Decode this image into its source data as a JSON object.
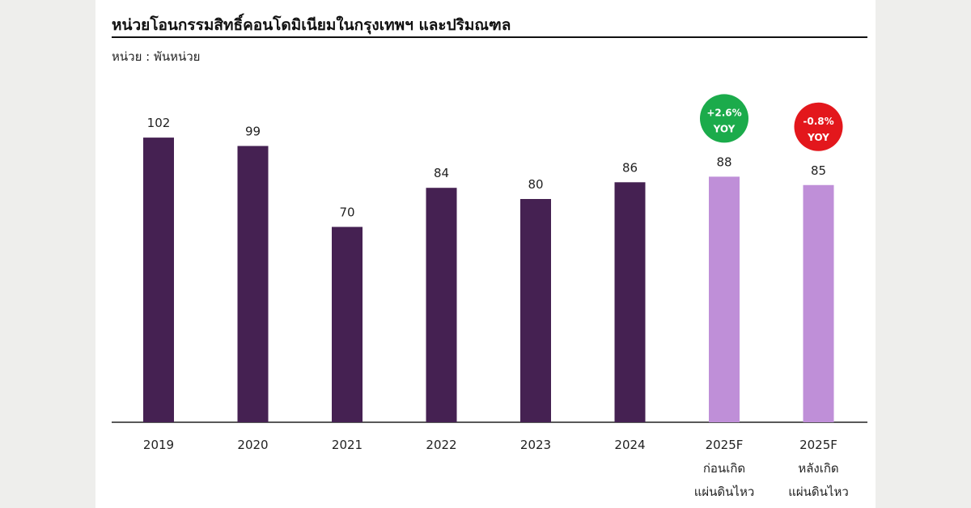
{
  "title": "หน่วยโอนกรรมสิทธิ์คอนโดมิเนียมในกรุงเทพฯ และปริมณฑล",
  "unit_label": "หน่วย : พันหน่วย",
  "colors": {
    "actual": "#452152",
    "forecast": "#bf8fd8",
    "badge_up": "#1bab4b",
    "badge_down": "#e3171c"
  },
  "chart_data": {
    "type": "bar",
    "title": "หน่วยโอนกรรมสิทธิ์คอนโดมิเนียมในกรุงเทพฯ และปริมณฑล",
    "ylabel": "หน่วย : พันหน่วย",
    "ylim": [
      0,
      115
    ],
    "grid": false,
    "categories": [
      [
        "2019"
      ],
      [
        "2020"
      ],
      [
        "2021"
      ],
      [
        "2022"
      ],
      [
        "2023"
      ],
      [
        "2024"
      ],
      [
        "2025F",
        "ก่อนเกิด",
        "แผ่นดินไหว"
      ],
      [
        "2025F",
        "หลังเกิด",
        "แผ่นดินไหว"
      ]
    ],
    "values": [
      102,
      99,
      70,
      84,
      80,
      86,
      88,
      85
    ],
    "kinds": [
      "actual",
      "actual",
      "actual",
      "actual",
      "actual",
      "actual",
      "forecast",
      "forecast"
    ],
    "annotations": [
      {
        "index": 6,
        "lines": [
          "+2.6%",
          "YOY"
        ],
        "tone": "up"
      },
      {
        "index": 7,
        "lines": [
          "-0.8%",
          "YOY"
        ],
        "tone": "down"
      }
    ]
  }
}
